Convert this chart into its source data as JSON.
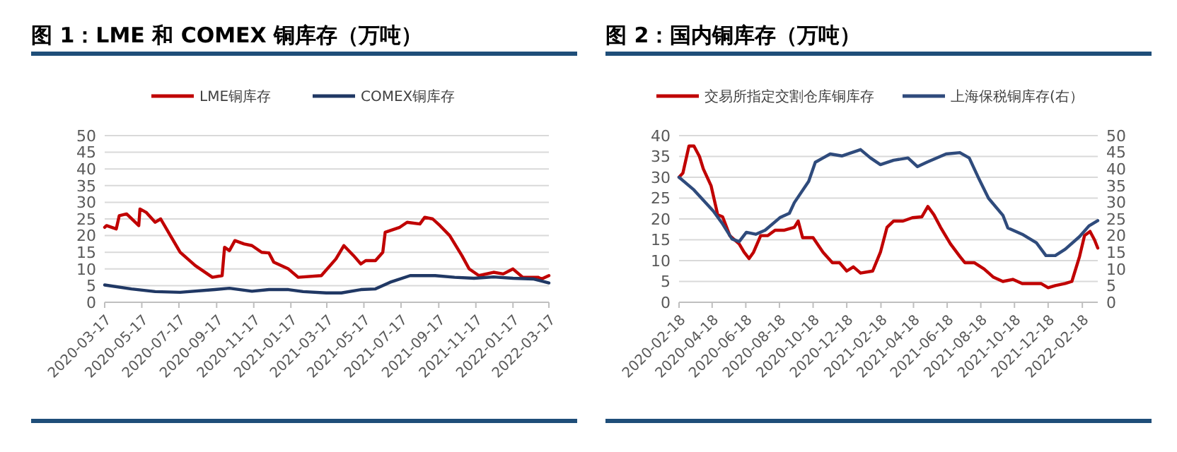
{
  "chart_data": [
    {
      "type": "line",
      "title": "图 1：LME 和 COMEX 铜库存（万吨）",
      "xlim": [
        "2020-03-17",
        "2022-03-17"
      ],
      "xticks": [
        "2020-03-17",
        "2020-05-17",
        "2020-07-17",
        "2020-09-17",
        "2020-11-17",
        "2021-01-17",
        "2021-03-17",
        "2021-05-17",
        "2021-07-17",
        "2021-09-17",
        "2021-11-17",
        "2022-01-17",
        "2022-03-17"
      ],
      "ylim": [
        0,
        50
      ],
      "yticks": [
        0,
        5,
        10,
        15,
        20,
        25,
        30,
        35,
        40,
        45,
        50
      ],
      "grid": "y",
      "legend": "top",
      "series": [
        {
          "name": "LME铜库存",
          "color": "#c00000",
          "x": [
            "2020-03-17",
            "2020-03-20",
            "2020-04-05",
            "2020-04-10",
            "2020-04-22",
            "2020-05-12",
            "2020-05-14",
            "2020-05-24",
            "2020-06-08",
            "2020-06-17",
            "2020-07-03",
            "2020-07-19",
            "2020-08-13",
            "2020-09-10",
            "2020-09-26",
            "2020-09-30",
            "2020-10-08",
            "2020-10-17",
            "2020-11-01",
            "2020-11-14",
            "2020-11-30",
            "2020-12-12",
            "2020-12-20",
            "2021-01-13",
            "2021-01-29",
            "2021-03-08",
            "2021-04-01",
            "2021-04-14",
            "2021-04-30",
            "2021-05-12",
            "2021-05-20",
            "2021-06-05",
            "2021-06-17",
            "2021-06-21",
            "2021-07-15",
            "2021-07-27",
            "2021-08-17",
            "2021-08-25",
            "2021-09-07",
            "2021-09-19",
            "2021-10-05",
            "2021-10-25",
            "2021-11-06",
            "2021-11-22",
            "2021-12-16",
            "2022-01-01",
            "2022-01-17",
            "2022-02-02",
            "2022-02-27",
            "2022-03-05",
            "2022-03-17"
          ],
          "values": [
            22.5,
            23,
            22,
            26,
            26.5,
            23,
            28,
            27,
            24,
            25,
            20,
            15,
            11,
            7.5,
            8,
            16.5,
            15.5,
            18.5,
            17.5,
            17,
            15,
            14.8,
            12,
            10,
            7.5,
            8,
            13,
            17,
            14,
            11.5,
            12.5,
            12.5,
            15,
            21,
            22.5,
            24,
            23.5,
            25.5,
            25,
            23,
            20,
            14,
            10,
            8,
            9,
            8.5,
            10,
            7.5,
            7.5,
            7,
            8
          ]
        },
        {
          "name": "COMEX铜库存",
          "color": "#203864",
          "x": [
            "2020-03-17",
            "2020-04-30",
            "2020-06-08",
            "2020-07-19",
            "2020-09-14",
            "2020-10-08",
            "2020-11-14",
            "2020-12-12",
            "2021-01-13",
            "2021-02-06",
            "2021-03-16",
            "2021-04-10",
            "2021-05-12",
            "2021-06-05",
            "2021-06-29",
            "2021-08-01",
            "2021-09-11",
            "2021-10-13",
            "2021-11-14",
            "2021-12-16",
            "2022-01-17",
            "2022-02-19",
            "2022-03-17"
          ],
          "values": [
            5.2,
            4,
            3.2,
            3,
            3.8,
            4.2,
            3.3,
            3.8,
            3.8,
            3.2,
            2.8,
            2.8,
            3.8,
            4,
            6,
            8,
            8,
            7.5,
            7.2,
            7.6,
            7.2,
            7,
            5.8
          ]
        }
      ]
    },
    {
      "type": "line",
      "title": "图 2：国内铜库存（万吨）",
      "xlim": [
        "2020-02-18",
        "2022-03-18"
      ],
      "xticks": [
        "2020-02-18",
        "2020-04-18",
        "2020-06-18",
        "2020-08-18",
        "2020-10-18",
        "2020-12-18",
        "2021-02-18",
        "2021-04-18",
        "2021-06-18",
        "2021-08-18",
        "2021-10-18",
        "2021-12-18",
        "2022-02-18"
      ],
      "ylim": [
        0,
        40
      ],
      "yticks": [
        0,
        5,
        10,
        15,
        20,
        25,
        30,
        35,
        40
      ],
      "y2lim": [
        0,
        50
      ],
      "y2ticks": [
        0,
        5,
        10,
        15,
        20,
        25,
        30,
        35,
        40,
        45,
        50
      ],
      "grid": "y",
      "legend": "top",
      "series": [
        {
          "name": "交易所指定交割仓库铜库存",
          "color": "#c00000",
          "x": [
            "2020-02-18",
            "2020-02-25",
            "2020-03-07",
            "2020-03-16",
            "2020-03-26",
            "2020-04-02",
            "2020-04-16",
            "2020-04-28",
            "2020-05-07",
            "2020-05-20",
            "2020-06-06",
            "2020-06-15",
            "2020-06-24",
            "2020-07-02",
            "2020-07-15",
            "2020-07-28",
            "2020-08-10",
            "2020-08-27",
            "2020-09-14",
            "2020-09-21",
            "2020-09-29",
            "2020-10-18",
            "2020-11-05",
            "2020-11-22",
            "2020-12-05",
            "2020-12-18",
            "2020-12-30",
            "2021-01-12",
            "2021-02-03",
            "2021-02-17",
            "2021-03-01",
            "2021-03-13",
            "2021-03-30",
            "2021-04-16",
            "2021-05-03",
            "2021-05-14",
            "2021-05-25",
            "2021-06-06",
            "2021-06-24",
            "2021-07-11",
            "2021-07-20",
            "2021-08-06",
            "2021-08-24",
            "2021-09-10",
            "2021-09-27",
            "2021-10-15",
            "2021-11-01",
            "2021-11-18",
            "2021-12-05",
            "2021-12-18",
            "2021-12-31",
            "2022-01-18",
            "2022-01-30",
            "2022-02-13",
            "2022-02-22",
            "2022-03-04",
            "2022-03-12",
            "2022-03-18"
          ],
          "values": [
            30,
            31,
            37.5,
            37.5,
            35,
            32,
            28,
            21,
            20.5,
            16,
            14,
            12,
            10.5,
            12,
            16,
            16,
            17.3,
            17.3,
            18,
            19.5,
            15.5,
            15.5,
            12,
            9.5,
            9.5,
            7.5,
            8.5,
            7,
            7.5,
            12,
            18,
            19.5,
            19.5,
            20.3,
            20.5,
            23,
            21,
            18,
            14,
            11,
            9.5,
            9.5,
            8,
            6,
            5,
            5.5,
            4.5,
            4.5,
            4.5,
            3.5,
            4,
            4.5,
            5,
            11,
            16,
            17,
            15,
            13
          ]
        },
        {
          "name": "上海保税铜库存(右）",
          "color": "#2f4b7c",
          "axis": "y2",
          "x": [
            "2020-02-18",
            "2020-03-16",
            "2020-04-20",
            "2020-05-07",
            "2020-05-24",
            "2020-06-06",
            "2020-06-19",
            "2020-07-06",
            "2020-07-23",
            "2020-08-19",
            "2020-09-05",
            "2020-09-14",
            "2020-10-10",
            "2020-10-22",
            "2020-11-05",
            "2020-11-18",
            "2020-12-09",
            "2021-01-12",
            "2021-01-30",
            "2021-02-17",
            "2021-03-13",
            "2021-04-08",
            "2021-04-25",
            "2021-05-12",
            "2021-06-16",
            "2021-07-11",
            "2021-07-28",
            "2021-08-15",
            "2021-09-01",
            "2021-09-27",
            "2021-10-06",
            "2021-11-01",
            "2021-11-27",
            "2021-12-14",
            "2021-12-31",
            "2022-01-18",
            "2022-02-13",
            "2022-03-02",
            "2022-03-18"
          ],
          "values": [
            37.5,
            33.7,
            27.4,
            23.5,
            19,
            18.2,
            21,
            20.4,
            21.6,
            25.4,
            26.7,
            29.9,
            36.3,
            42,
            43.3,
            44.5,
            43.9,
            45.8,
            43.3,
            41.3,
            42.6,
            43.3,
            40.7,
            42,
            44.5,
            44.9,
            43.3,
            36.9,
            31.2,
            26.1,
            22.3,
            20.4,
            17.8,
            14,
            14,
            15.9,
            19.7,
            22.9,
            24.5
          ]
        }
      ]
    }
  ]
}
